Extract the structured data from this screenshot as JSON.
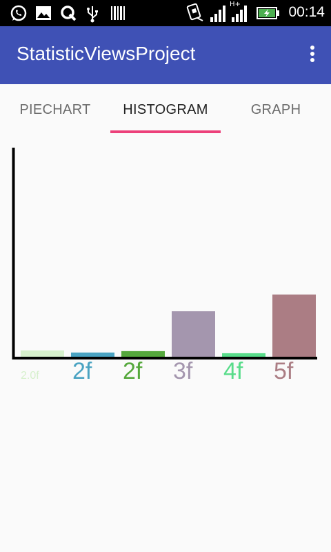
{
  "status_bar": {
    "time": "00:14",
    "network_label": "H+",
    "icons": [
      "whatsapp-icon",
      "gallery-icon",
      "q-app-icon",
      "usb-icon",
      "barcode-icon",
      "sim-phone-icon",
      "signal-icon",
      "signal-h-plus-icon",
      "battery-charging-icon"
    ]
  },
  "app_bar": {
    "title": "StatisticViewsProject",
    "menu_icon": "more-vert-icon"
  },
  "tabs": [
    {
      "label": "PIECHART",
      "active": false
    },
    {
      "label": "HISTOGRAM",
      "active": true
    },
    {
      "label": "GRAPH",
      "active": false
    }
  ],
  "colors": {
    "app_bar": "#3f51b5",
    "tab_indicator": "#ec407a"
  },
  "chart_data": {
    "type": "bar",
    "categories": [
      "2.0f",
      "2f",
      "2f",
      "3f",
      "4f",
      "5f"
    ],
    "values": [
      0.5,
      0.35,
      0.45,
      3.3,
      0.3,
      4.5
    ],
    "colors": [
      "#d6f0cc",
      "#4aa3c2",
      "#55a83c",
      "#a496ae",
      "#58dc8a",
      "#ab7d84"
    ],
    "ylim": [
      0,
      15
    ],
    "title": "",
    "xlabel": "",
    "ylabel": ""
  }
}
